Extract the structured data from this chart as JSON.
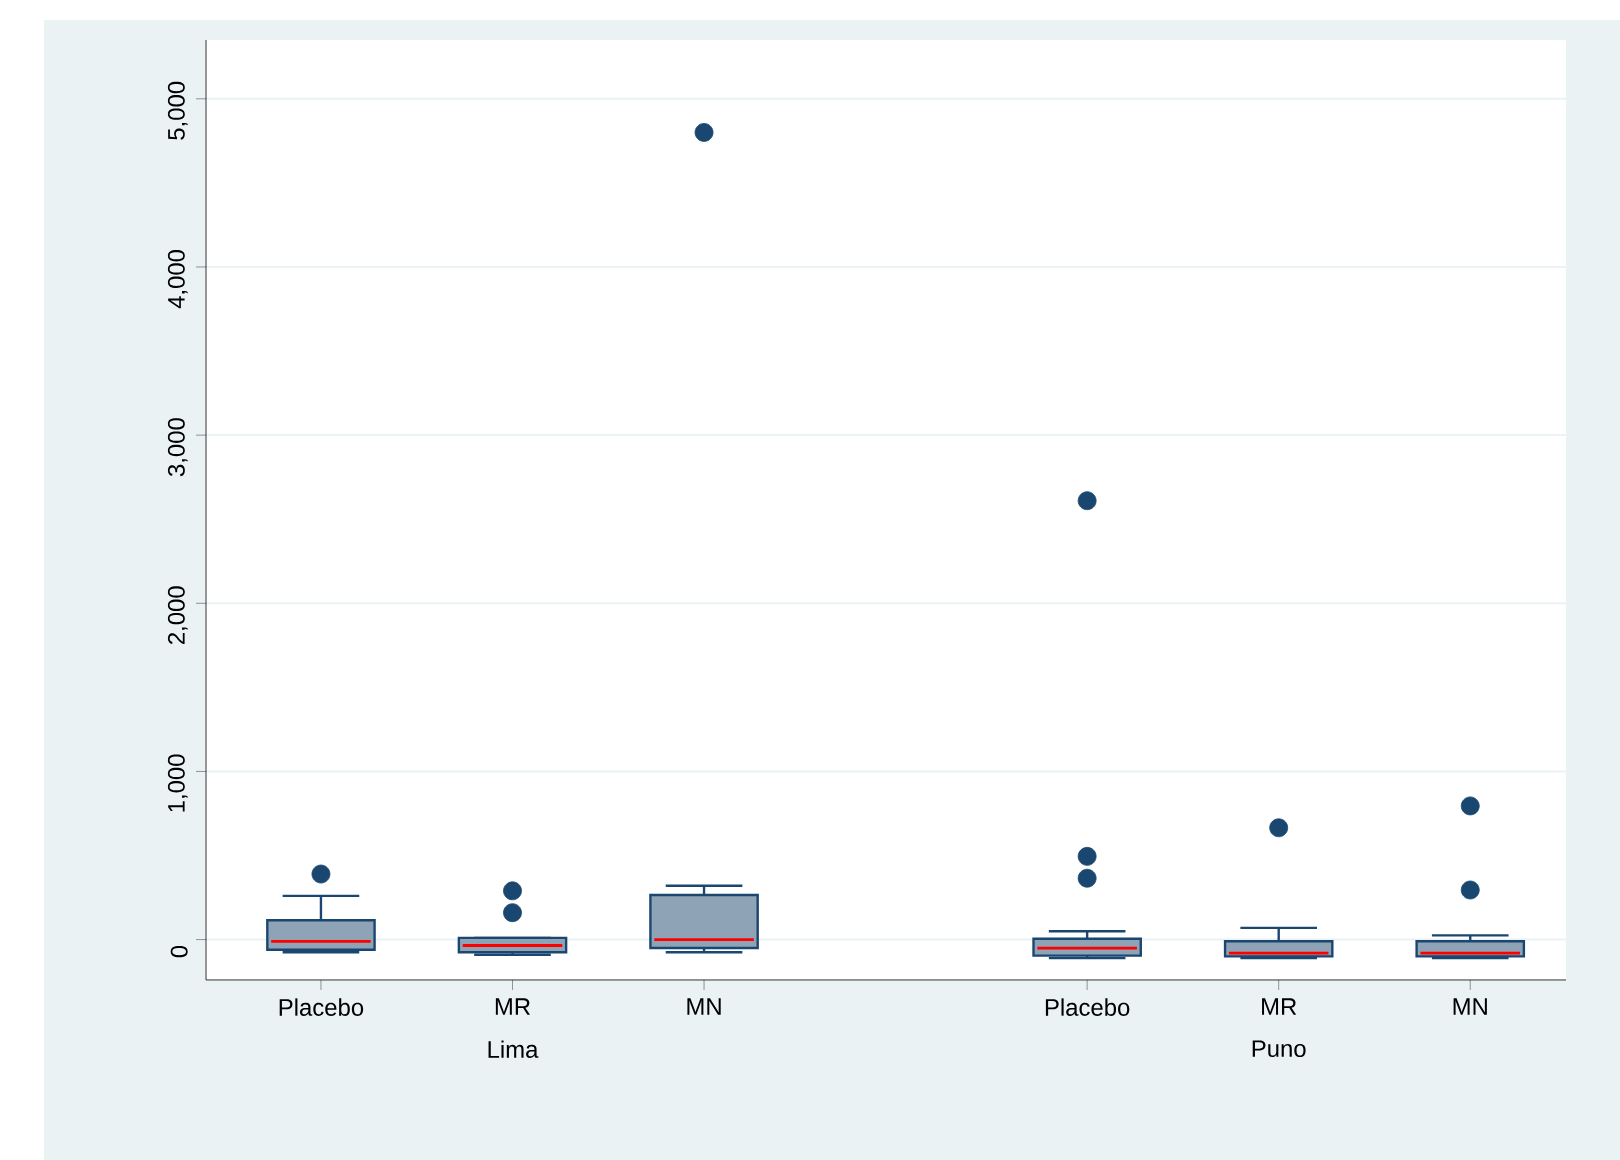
{
  "chart_data": {
    "type": "box",
    "categories": [
      "Placebo",
      "MR",
      "MN",
      null,
      "Placebo",
      "MR",
      "MN"
    ],
    "color": "#8fa3b7",
    "boxes": [
      {
        "low": -75,
        "q1": -60,
        "median": -10,
        "q3": 115,
        "high": 260,
        "outliers": [
          390
        ]
      },
      {
        "low": -90,
        "q1": -75,
        "median": -35,
        "q3": 10,
        "high": 10,
        "outliers": [
          160,
          290
        ]
      },
      {
        "low": -75,
        "q1": -50,
        "median": 0,
        "q3": 265,
        "high": 320,
        "outliers": [
          4800
        ]
      },
      null,
      {
        "low": -110,
        "q1": -95,
        "median": -50,
        "q3": 5,
        "high": 50,
        "outliers": [
          365,
          495,
          2610
        ]
      },
      {
        "low": -110,
        "q1": -100,
        "median": -80,
        "q3": -10,
        "high": 70,
        "outliers": [
          665
        ]
      },
      {
        "low": -110,
        "q1": -100,
        "median": -80,
        "q3": -10,
        "high": 25,
        "outliers": [
          295,
          795
        ]
      }
    ],
    "annotations": [
      "Lima",
      "Puno"
    ],
    "ylim": [
      -240,
      5350
    ],
    "yticks": [
      {
        "value": 0,
        "label": "0"
      },
      {
        "value": 1000,
        "label": "1,000"
      },
      {
        "value": 2000,
        "label": "2,000"
      },
      {
        "value": 3000,
        "label": "3,000"
      },
      {
        "value": 4000,
        "label": "4,000"
      },
      {
        "value": 5000,
        "label": "5,000"
      }
    ],
    "grid": "y"
  }
}
